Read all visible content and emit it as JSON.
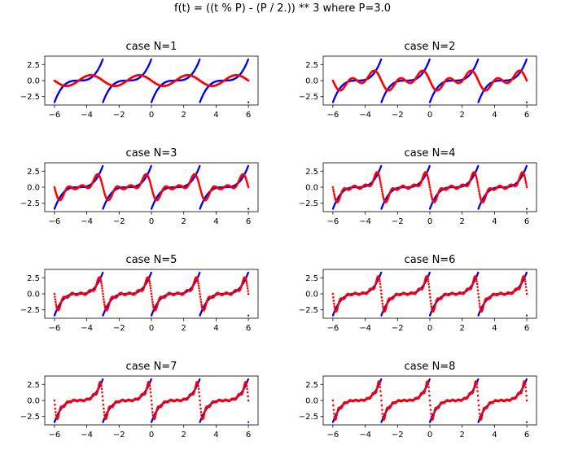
{
  "suptitle": "f(t) = ((t % P) - (P / 2.)) ** 3 where P=3.0",
  "colors": {
    "true_function": "#0000ff",
    "fourier_approximation": "#ff0000",
    "axes": "#000000"
  },
  "chart_data": [
    {
      "type": "scatter",
      "title": "case N=1",
      "period": 3.0,
      "harmonics": 1,
      "xlim": [
        -6.6,
        6.6
      ],
      "ylim": [
        -3.8,
        3.8
      ],
      "xticks": [
        -6,
        -4,
        -2,
        0,
        2,
        4,
        6
      ],
      "xtick_labels": [
        "−6",
        "−4",
        "−2",
        "0",
        "2",
        "4",
        "6"
      ],
      "yticks": [
        2.5,
        0.0,
        -2.5
      ],
      "ytick_labels": [
        "2.5",
        "0.0",
        "−2.5"
      ],
      "series": [
        {
          "function": "((t % 3) - 1.5) ** 3",
          "x_range": [
            -6,
            6
          ]
        },
        {
          "function": "fourier_series_N1",
          "x_range": [
            -6,
            6
          ]
        }
      ]
    },
    {
      "type": "scatter",
      "title": "case N=2",
      "period": 3.0,
      "harmonics": 2,
      "xlim": [
        -6.6,
        6.6
      ],
      "ylim": [
        -3.8,
        3.8
      ],
      "xticks": [
        -6,
        -4,
        -2,
        0,
        2,
        4,
        6
      ],
      "xtick_labels": [
        "−6",
        "−4",
        "−2",
        "0",
        "2",
        "4",
        "6"
      ],
      "yticks": [
        2.5,
        0.0,
        -2.5
      ],
      "ytick_labels": [
        "2.5",
        "0.0",
        "−2.5"
      ],
      "series": [
        {
          "function": "((t % 3) - 1.5) ** 3",
          "x_range": [
            -6,
            6
          ]
        },
        {
          "function": "fourier_series_N2",
          "x_range": [
            -6,
            6
          ]
        }
      ]
    },
    {
      "type": "scatter",
      "title": "case N=3",
      "period": 3.0,
      "harmonics": 3,
      "xlim": [
        -6.6,
        6.6
      ],
      "ylim": [
        -3.8,
        3.8
      ],
      "xticks": [
        -6,
        -4,
        -2,
        0,
        2,
        4,
        6
      ],
      "xtick_labels": [
        "−6",
        "−4",
        "−2",
        "0",
        "2",
        "4",
        "6"
      ],
      "yticks": [
        2.5,
        0.0,
        -2.5
      ],
      "ytick_labels": [
        "2.5",
        "0.0",
        "−2.5"
      ],
      "series": [
        {
          "function": "((t % 3) - 1.5) ** 3",
          "x_range": [
            -6,
            6
          ]
        },
        {
          "function": "fourier_series_N3",
          "x_range": [
            -6,
            6
          ]
        }
      ]
    },
    {
      "type": "scatter",
      "title": "case N=4",
      "period": 3.0,
      "harmonics": 4,
      "xlim": [
        -6.6,
        6.6
      ],
      "ylim": [
        -3.8,
        3.8
      ],
      "xticks": [
        -6,
        -4,
        -2,
        0,
        2,
        4,
        6
      ],
      "xtick_labels": [
        "−6",
        "−4",
        "−2",
        "0",
        "2",
        "4",
        "6"
      ],
      "yticks": [
        2.5,
        0.0,
        -2.5
      ],
      "ytick_labels": [
        "2.5",
        "0.0",
        "−2.5"
      ],
      "series": [
        {
          "function": "((t % 3) - 1.5) ** 3",
          "x_range": [
            -6,
            6
          ]
        },
        {
          "function": "fourier_series_N4",
          "x_range": [
            -6,
            6
          ]
        }
      ]
    },
    {
      "type": "scatter",
      "title": "case N=5",
      "period": 3.0,
      "harmonics": 5,
      "xlim": [
        -6.6,
        6.6
      ],
      "ylim": [
        -3.8,
        3.8
      ],
      "xticks": [
        -6,
        -4,
        -2,
        0,
        2,
        4,
        6
      ],
      "xtick_labels": [
        "−6",
        "−4",
        "−2",
        "0",
        "2",
        "4",
        "6"
      ],
      "yticks": [
        2.5,
        0.0,
        -2.5
      ],
      "ytick_labels": [
        "2.5",
        "0.0",
        "−2.5"
      ],
      "series": [
        {
          "function": "((t % 3) - 1.5) ** 3",
          "x_range": [
            -6,
            6
          ]
        },
        {
          "function": "fourier_series_N5",
          "x_range": [
            -6,
            6
          ]
        }
      ]
    },
    {
      "type": "scatter",
      "title": "case N=6",
      "period": 3.0,
      "harmonics": 6,
      "xlim": [
        -6.6,
        6.6
      ],
      "ylim": [
        -3.8,
        3.8
      ],
      "xticks": [
        -6,
        -4,
        -2,
        0,
        2,
        4,
        6
      ],
      "xtick_labels": [
        "−6",
        "−4",
        "−2",
        "0",
        "2",
        "4",
        "6"
      ],
      "yticks": [
        2.5,
        0.0,
        -2.5
      ],
      "ytick_labels": [
        "2.5",
        "0.0",
        "−2.5"
      ],
      "series": [
        {
          "function": "((t % 3) - 1.5) ** 3",
          "x_range": [
            -6,
            6
          ]
        },
        {
          "function": "fourier_series_N6",
          "x_range": [
            -6,
            6
          ]
        }
      ]
    },
    {
      "type": "scatter",
      "title": "case N=7",
      "period": 3.0,
      "harmonics": 7,
      "xlim": [
        -6.6,
        6.6
      ],
      "ylim": [
        -3.8,
        3.8
      ],
      "xticks": [
        -6,
        -4,
        -2,
        0,
        2,
        4,
        6
      ],
      "xtick_labels": [
        "−6",
        "−4",
        "−2",
        "0",
        "2",
        "4",
        "6"
      ],
      "yticks": [
        2.5,
        0.0,
        -2.5
      ],
      "ytick_labels": [
        "2.5",
        "0.0",
        "−2.5"
      ],
      "series": [
        {
          "function": "((t % 3) - 1.5) ** 3",
          "x_range": [
            -6,
            6
          ]
        },
        {
          "function": "fourier_series_N7",
          "x_range": [
            -6,
            6
          ]
        }
      ]
    },
    {
      "type": "scatter",
      "title": "case N=8",
      "period": 3.0,
      "harmonics": 8,
      "xlim": [
        -6.6,
        6.6
      ],
      "ylim": [
        -3.8,
        3.8
      ],
      "xticks": [
        -6,
        -4,
        -2,
        0,
        2,
        4,
        6
      ],
      "xtick_labels": [
        "−6",
        "−4",
        "−2",
        "0",
        "2",
        "4",
        "6"
      ],
      "yticks": [
        2.5,
        0.0,
        -2.5
      ],
      "ytick_labels": [
        "2.5",
        "0.0",
        "−2.5"
      ],
      "series": [
        {
          "function": "((t % 3) - 1.5) ** 3",
          "x_range": [
            -6,
            6
          ]
        },
        {
          "function": "fourier_series_N8",
          "x_range": [
            -6,
            6
          ]
        }
      ]
    }
  ]
}
